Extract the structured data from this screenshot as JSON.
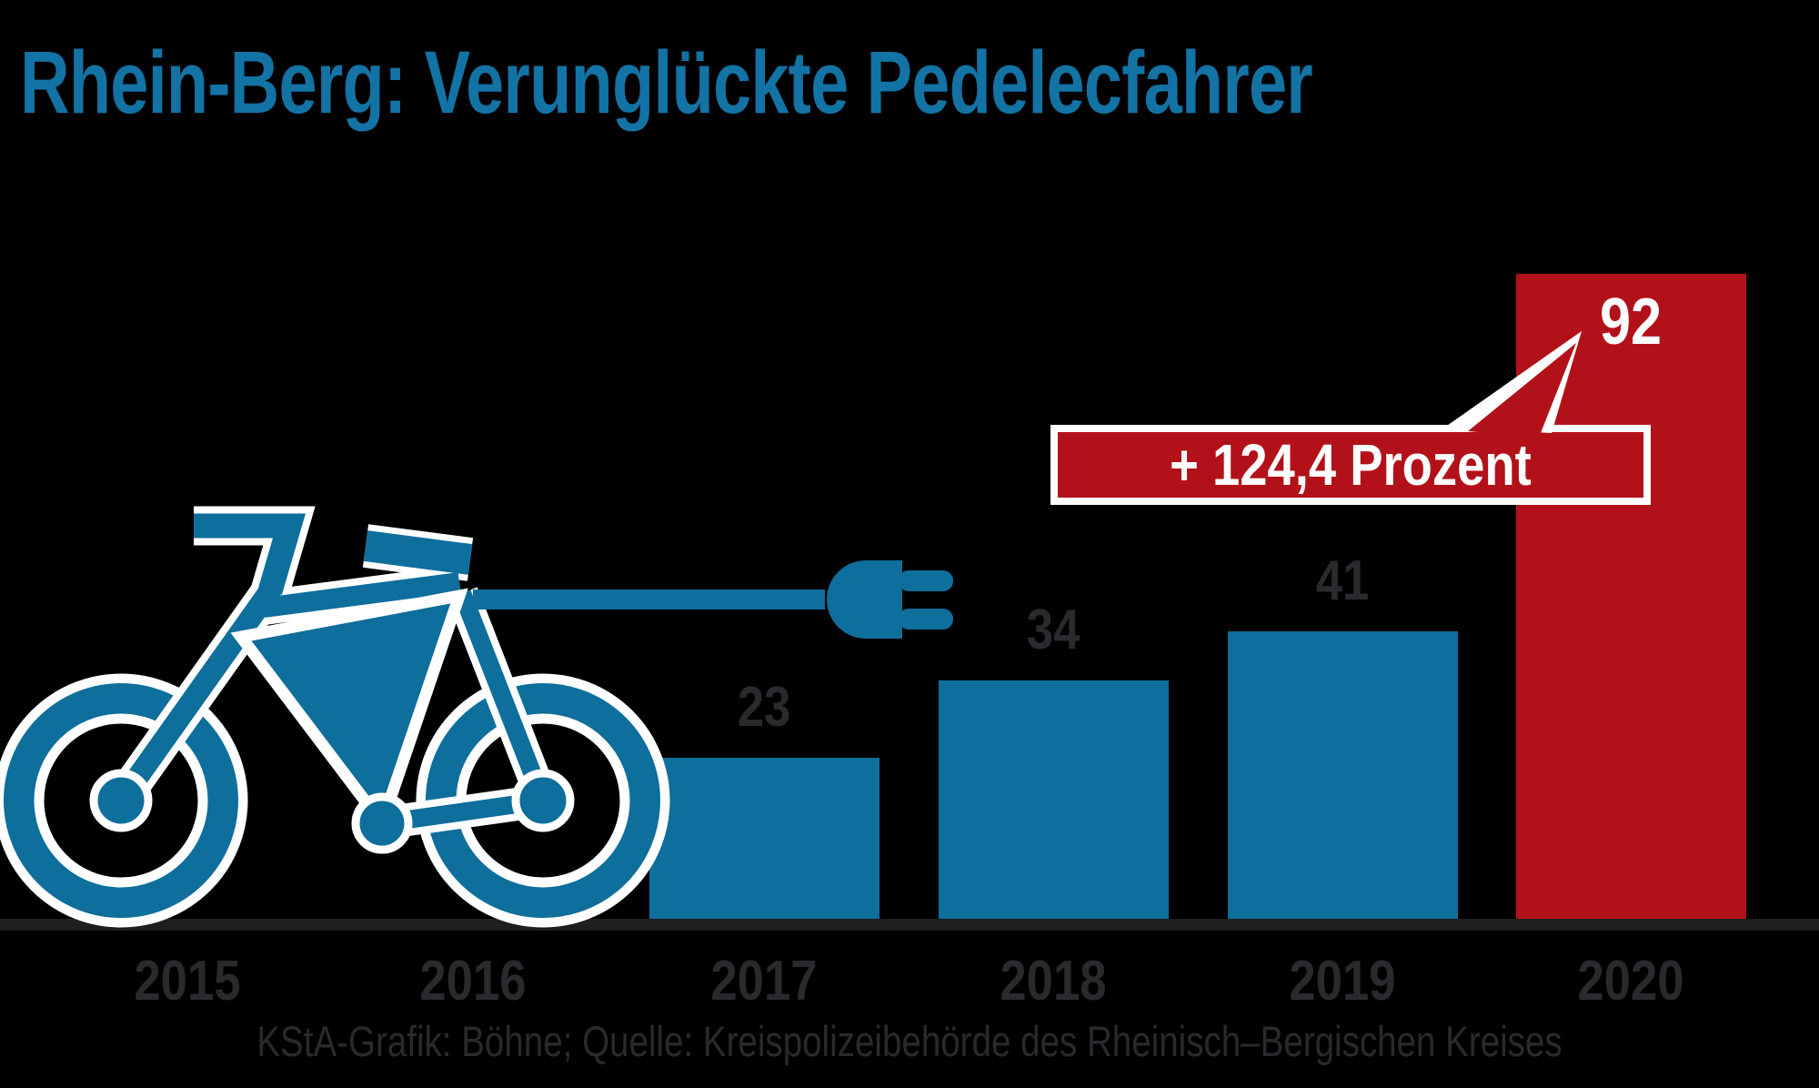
{
  "title": "Rhein-Berg: Verunglückte Pedelecfahrer",
  "source_line": "KStA-Grafik: Böhne; Quelle: Kreispolizeibehörde des Rheinisch–Bergischen Kreises",
  "chart_data": {
    "type": "bar",
    "title": "Rhein-Berg: Verunglückte Pedelecfahrer",
    "categories": [
      "2015",
      "2016",
      "2017",
      "2018",
      "2019",
      "2020"
    ],
    "values": [
      null,
      null,
      23,
      34,
      41,
      92
    ],
    "bar_colors": [
      null,
      null,
      "#0E6E9C",
      "#0E6E9C",
      "#0E6E9C",
      "#B31119"
    ],
    "annotation": {
      "label": "+ 124,4 Prozent",
      "applies_to": "2020",
      "box_fill": "#B31119",
      "box_border": "#FFFFFF",
      "text_color": "#FFFFFF"
    },
    "ylim": [
      0,
      95
    ],
    "gridlines": false,
    "legend": false,
    "baseline_color": "#1E1E20",
    "accent_blue": "#0E6E9C",
    "accent_red": "#B31119",
    "title_color": "#1273A4",
    "label_color": "#2A2A2E",
    "background_color": "#000000",
    "icons": [
      "bicycle-icon",
      "power-plug-icon",
      "callout-pointer-icon"
    ],
    "notes": "Bars only for 2017-2020; 2015/2016 area shows a blue bicycle pictogram with power cable and plug; 2020 bar highlighted red with speech-bubble callout pointing at its value"
  }
}
